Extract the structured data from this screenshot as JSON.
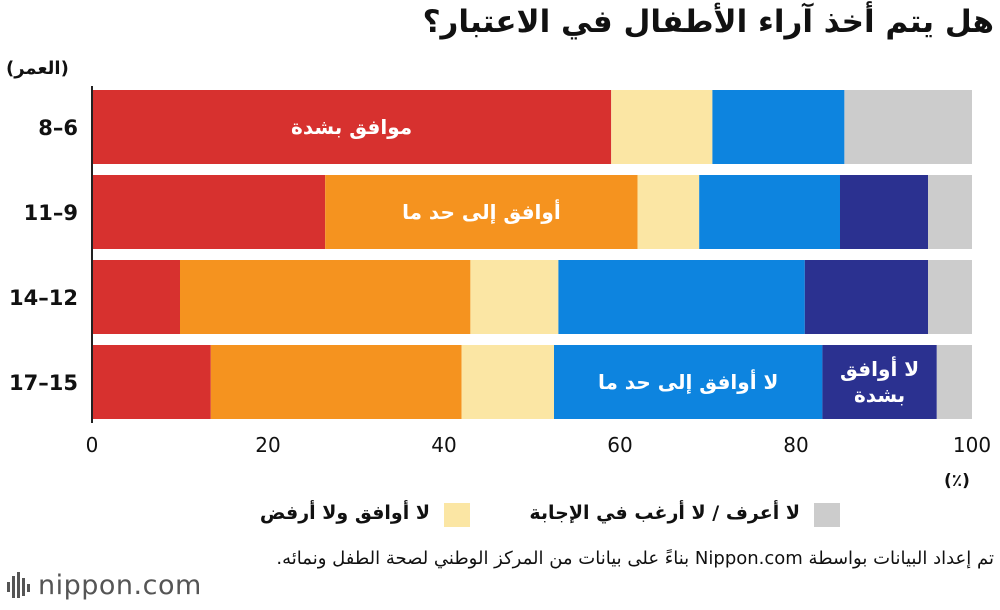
{
  "title": "هل يتم أخذ آراء الأطفال في الاعتبار؟",
  "age_axis_label": "(العمر)",
  "unit_label": "(٪)",
  "source_note": "تم إعداد البيانات بواسطة Nippon.com بناءً على بيانات من المركز الوطني لصحة الطفل ونمائه.",
  "logo": {
    "name": "nippon.com"
  },
  "chart_data": {
    "type": "bar",
    "orientation": "horizontal",
    "stacked": true,
    "categories": [
      "8–6",
      "11–9",
      "14–12",
      "17–15"
    ],
    "xlim": [
      0,
      100
    ],
    "xticks": [
      0,
      20,
      40,
      60,
      80,
      100
    ],
    "grid": false,
    "legend_position": "bottom",
    "series": [
      {
        "name": "موافق بشدة",
        "color": "#d7312f",
        "values": [
          59,
          26.5,
          10,
          13.5
        ]
      },
      {
        "name": "أوافق إلى حد ما",
        "color": "#f5931f",
        "values": [
          0,
          35.5,
          33,
          28.5
        ]
      },
      {
        "name": "لا أوافق ولا أرفض",
        "color": "#fbe6a4",
        "values": [
          11.5,
          7,
          10,
          10.5
        ]
      },
      {
        "name": "لا أوافق إلى حد ما",
        "color": "#0d84df",
        "values": [
          15,
          16,
          28,
          30.5
        ]
      },
      {
        "name": "لا أوافق بشدة",
        "color": "#2b3190",
        "values": [
          0,
          10,
          14,
          13
        ]
      },
      {
        "name": "لا أعرف / لا أرغب في الإجابة",
        "color": "#cccccc",
        "values": [
          14.5,
          5,
          5,
          4
        ]
      }
    ],
    "in_bar_labels": [
      {
        "series": 0,
        "category": 0,
        "lines": [
          "موافق بشدة"
        ]
      },
      {
        "series": 1,
        "category": 1,
        "lines": [
          "أوافق إلى حد ما"
        ]
      },
      {
        "series": 3,
        "category": 3,
        "lines": [
          "لا أوافق إلى حد ما"
        ]
      },
      {
        "series": 4,
        "category": 3,
        "lines": [
          "لا أوافق",
          "بشدة"
        ]
      }
    ],
    "legend_entries": [
      2,
      5
    ]
  }
}
